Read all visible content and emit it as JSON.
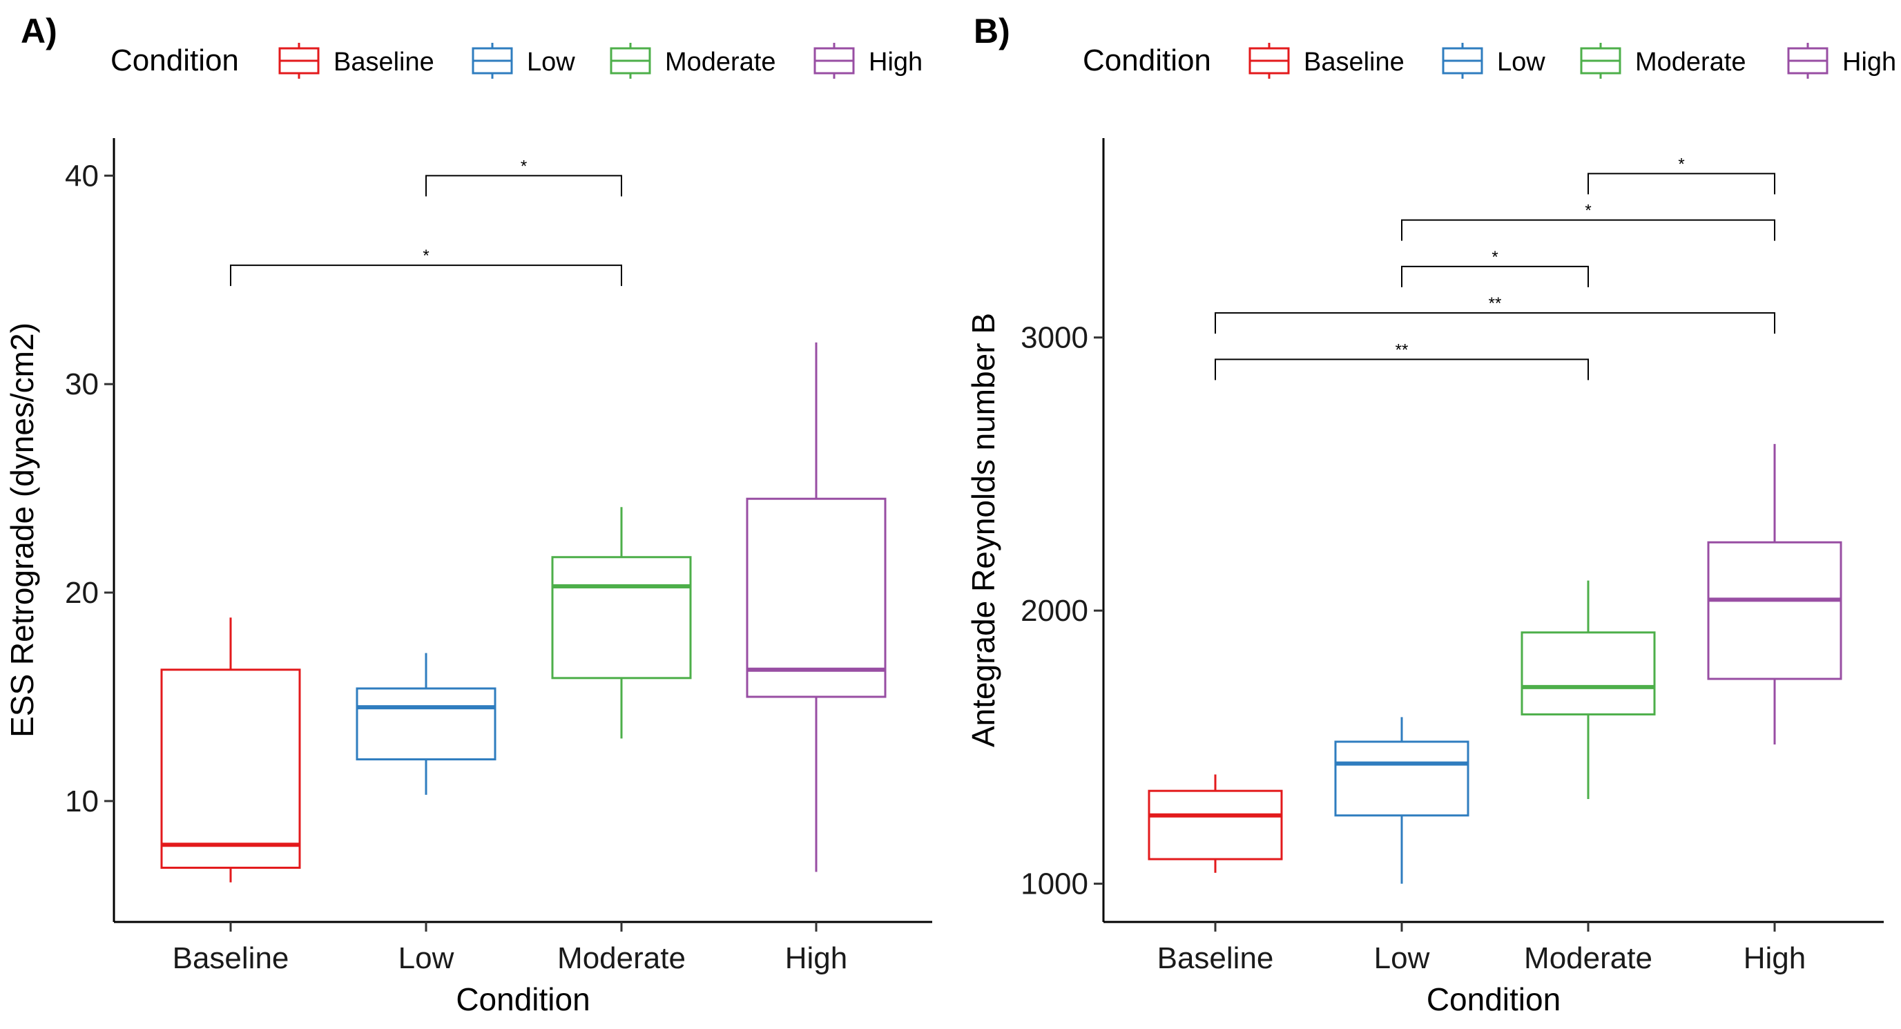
{
  "chart_data": [
    {
      "type": "box",
      "panel_label": "A)",
      "legend": {
        "title": "Condition",
        "entries": [
          "Baseline",
          "Low",
          "Moderate",
          "High"
        ],
        "placement": "top"
      },
      "xlabel": "Condition",
      "ylabel": "ESS Retrograde (dynes/cm2)",
      "ylim": [
        4.2,
        41.8
      ],
      "yticks": [
        10,
        20,
        30,
        40
      ],
      "categories": [
        "Baseline",
        "Low",
        "Moderate",
        "High"
      ],
      "colors": [
        "#e31a1c",
        "#2f7dbf",
        "#4daf4a",
        "#984ea3"
      ],
      "boxes": [
        {
          "category": "Baseline",
          "min": 6.1,
          "q1": 6.8,
          "median": 7.9,
          "q3": 16.3,
          "max": 18.8
        },
        {
          "category": "Low",
          "min": 10.3,
          "q1": 12.0,
          "median": 14.5,
          "q3": 15.4,
          "max": 17.1
        },
        {
          "category": "Moderate",
          "min": 13.0,
          "q1": 15.9,
          "median": 20.3,
          "q3": 21.7,
          "max": 24.1
        },
        {
          "category": "High",
          "min": 6.6,
          "q1": 15.0,
          "median": 16.3,
          "q3": 24.5,
          "max": 32.0
        }
      ],
      "significance": [
        {
          "from": "Low",
          "to": "Moderate",
          "label": "*",
          "y": 40.0
        },
        {
          "from": "Baseline",
          "to": "Moderate",
          "label": "*",
          "y": 35.7
        }
      ],
      "grid": false
    },
    {
      "type": "box",
      "panel_label": "B)",
      "legend": {
        "title": "Condition",
        "entries": [
          "Baseline",
          "Low",
          "Moderate",
          "High"
        ],
        "placement": "top"
      },
      "xlabel": "Condition",
      "ylabel": "Antegrade Reynolds number B",
      "ylim": [
        860,
        3730
      ],
      "yticks": [
        1000,
        2000,
        3000
      ],
      "categories": [
        "Baseline",
        "Low",
        "Moderate",
        "High"
      ],
      "colors": [
        "#e31a1c",
        "#2f7dbf",
        "#4daf4a",
        "#984ea3"
      ],
      "boxes": [
        {
          "category": "Baseline",
          "min": 1040,
          "q1": 1090,
          "median": 1250,
          "q3": 1340,
          "max": 1400
        },
        {
          "category": "Low",
          "min": 1000,
          "q1": 1250,
          "median": 1440,
          "q3": 1520,
          "max": 1610
        },
        {
          "category": "Moderate",
          "min": 1310,
          "q1": 1620,
          "median": 1720,
          "q3": 1920,
          "max": 2110
        },
        {
          "category": "High",
          "min": 1510,
          "q1": 1750,
          "median": 2040,
          "q3": 2250,
          "max": 2610
        }
      ],
      "significance": [
        {
          "from": "Moderate",
          "to": "High",
          "label": "*",
          "y": 3600
        },
        {
          "from": "Low",
          "to": "High",
          "label": "*",
          "y": 3430
        },
        {
          "from": "Low",
          "to": "Moderate",
          "label": "*",
          "y": 3260
        },
        {
          "from": "Baseline",
          "to": "High",
          "label": "**",
          "y": 3090
        },
        {
          "from": "Baseline",
          "to": "Moderate",
          "label": "**",
          "y": 2920
        }
      ],
      "grid": false
    }
  ]
}
